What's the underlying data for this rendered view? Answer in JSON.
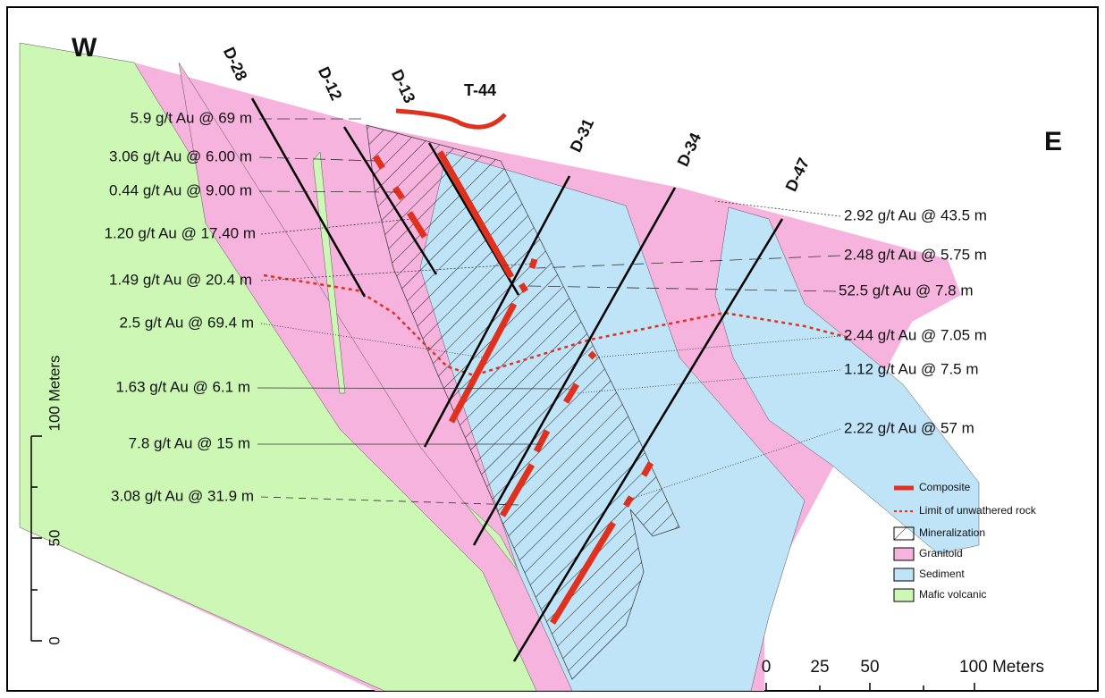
{
  "directions": {
    "west": "W",
    "east": "E"
  },
  "drillholes": [
    "D-28",
    "D-12",
    "D-13",
    "D-31",
    "D-34",
    "D-47"
  ],
  "trench": "T-44",
  "intercepts_left": [
    "5.9 g/t Au @ 69 m",
    "3.06 g/t Au @ 6.00 m",
    "0.44 g/t Au @ 9.00 m",
    "1.20 g/t Au @ 17.40 m",
    "1.49 g/t Au @ 20.4 m",
    "2.5 g/t Au @ 69.4 m",
    "1.63 g/t Au @ 6.1 m",
    "7.8 g/t Au @ 15 m",
    "3.08 g/t Au @ 31.9 m"
  ],
  "intercepts_right": [
    "2.92 g/t Au @ 43.5 m",
    "2.48 g/t Au @ 5.75 m",
    "52.5 g/t Au @ 7.8 m",
    "2.44 g/t Au @ 7.05 m",
    "1.12 g/t Au @ 7.5 m",
    "2.22 g/t Au @ 57 m"
  ],
  "legend": [
    "Composite",
    "Limit of unwathered rock",
    "Mineralization",
    "Granitoid",
    "Sediment",
    "Mafic volcanic"
  ],
  "vertical_scale": {
    "label": "100 Meters",
    "ticks": [
      "50",
      "0"
    ]
  },
  "horizontal_scale": {
    "ticks": [
      "0",
      "25",
      "50",
      "100 Meters"
    ]
  }
}
